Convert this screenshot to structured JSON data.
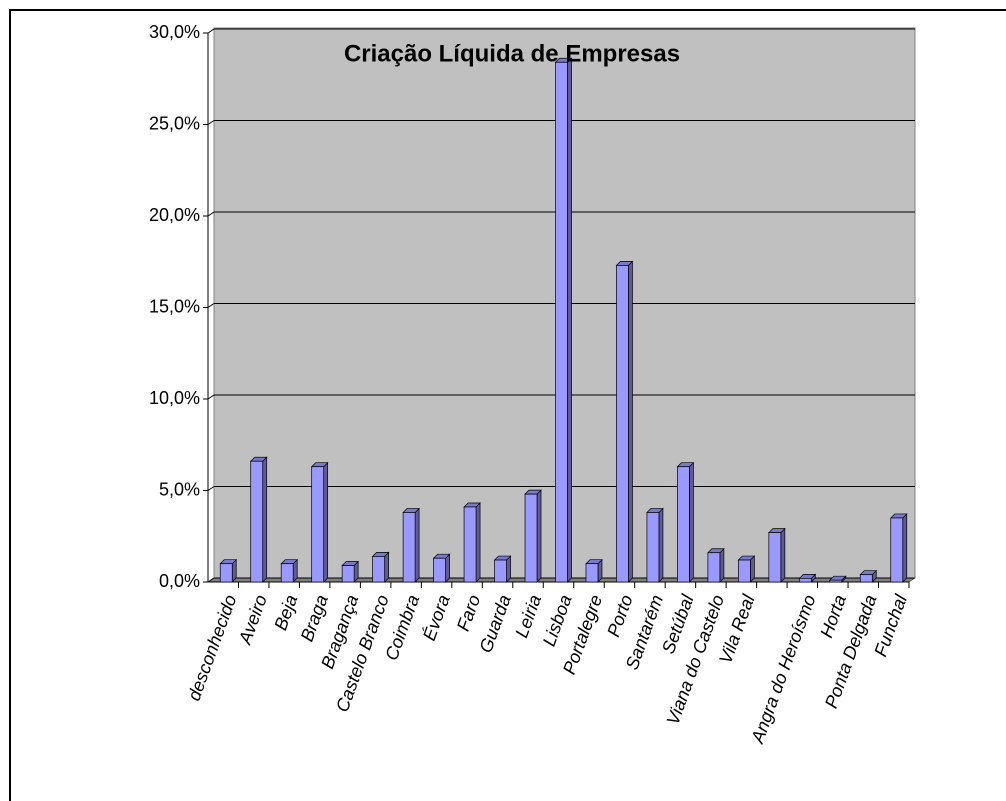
{
  "chart_data": {
    "type": "bar",
    "title": "Criação Líquida de Empresas",
    "categories": [
      "desconhecido",
      "Aveiro",
      "Beja",
      "Braga",
      "Bragança",
      "Castelo Branco",
      "Coimbra",
      "Évora",
      "Faro",
      "Guarda",
      "Leiria",
      "Lisboa",
      "Portalegre",
      "Porto",
      "Santarém",
      "Setúbal",
      "Viana do Castelo",
      "Vila Real",
      null,
      "Angra do Heroísmo",
      "Horta",
      "Ponta Delgada",
      "Funchal"
    ],
    "values": [
      1.0,
      6.6,
      1.0,
      6.3,
      0.9,
      1.4,
      3.8,
      1.3,
      4.1,
      1.2,
      4.8,
      28.4,
      1.0,
      17.3,
      3.8,
      6.3,
      1.6,
      1.2,
      2.7,
      0.2,
      0.1,
      0.4,
      3.5
    ],
    "color": "#9999ff",
    "ylim": [
      0,
      30
    ],
    "yticks": [
      {
        "value": 0,
        "label": "0,0%"
      },
      {
        "value": 5,
        "label": "5,0%"
      },
      {
        "value": 10,
        "label": "10,0%"
      },
      {
        "value": 15,
        "label": "15,0%"
      },
      {
        "value": 20,
        "label": "20,0%"
      },
      {
        "value": 25,
        "label": "25,0%"
      },
      {
        "value": 30,
        "label": "30,0%"
      }
    ],
    "grid": true
  }
}
